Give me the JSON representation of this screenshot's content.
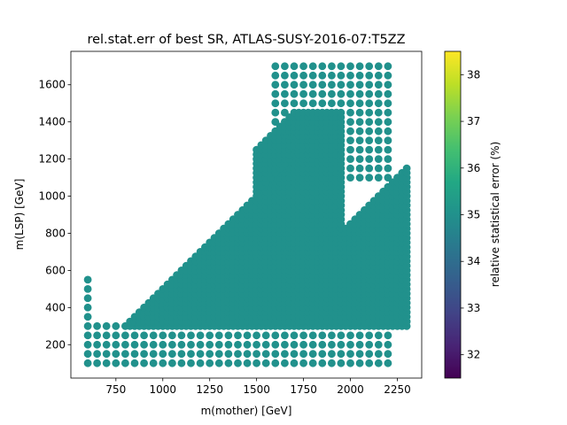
{
  "chart_data": {
    "type": "scatter",
    "title": "rel.stat.err of best SR, ATLAS-SUSY-2016-07:T5ZZ",
    "xlabel": "m(mother) [GeV]",
    "ylabel": "m(LSP) [GeV]",
    "xlim": [
      510,
      2380
    ],
    "ylim": [
      20,
      1780
    ],
    "x_ticks": [
      750,
      1000,
      1250,
      1500,
      1750,
      2000,
      2250
    ],
    "y_ticks": [
      200,
      400,
      600,
      800,
      1000,
      1200,
      1400,
      1600
    ],
    "point_color": "#21918c",
    "grid": false,
    "colorbar": {
      "label": "relative statistical error (%)",
      "range": [
        31.5,
        38.5
      ],
      "ticks": [
        32,
        33,
        34,
        35,
        36,
        37,
        38
      ],
      "colormap": "viridis"
    },
    "all_values_percent": 35,
    "regions": {
      "lower_grid": {
        "x_start": 600,
        "x_end": 2200,
        "x_step": 50,
        "y_start": 100,
        "y_end": 300,
        "y_step": 50
      },
      "left_dense": {
        "x_start": 650,
        "x_end": 1700,
        "x_step": 25,
        "y_start": 300,
        "y_max_edge": "y = x - 500 (approx)",
        "y_step": 25
      },
      "top_grid": {
        "x_start": 1600,
        "x_end": 2200,
        "x_step": 50,
        "y_start": 1400,
        "y_end": 1700,
        "y_step": 50
      },
      "right_diagonal": {
        "x_start": 1950,
        "x_end": 2300,
        "x_step": 25,
        "y_start": 300,
        "y_max_edge": "y = x - 1150 (approx)",
        "y_step": 25
      }
    }
  }
}
